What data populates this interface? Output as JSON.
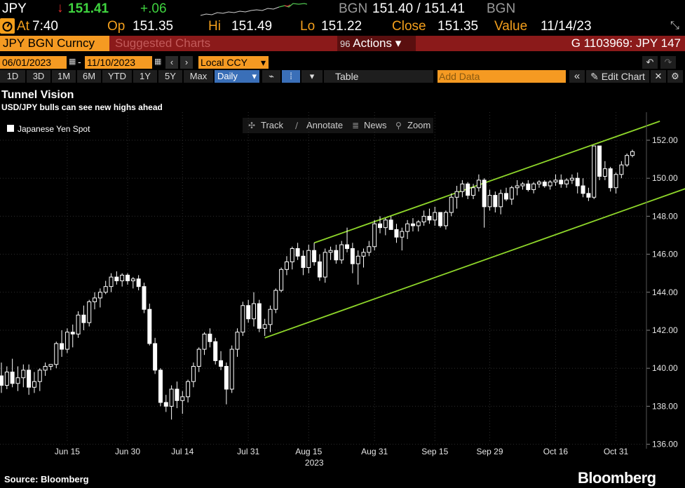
{
  "ticker": {
    "symbol": "JPY",
    "arrow": "↓",
    "last": "151.41",
    "change": "+.06",
    "bgn_label_left": "BGN",
    "bid_ask": "151.40 / 151.41",
    "bgn_label_right": "BGN",
    "colors": {
      "down_arrow": "#e8312f",
      "last": "#3fd33f",
      "change": "#3fd33f",
      "sparkline_up": "#4fc34f",
      "sparkline_down": "#e04040"
    }
  },
  "quote": {
    "at_label": "At",
    "time": "7:40",
    "op_label": "Op",
    "open": "151.35",
    "hi_label": "Hi",
    "high": "151.49",
    "lo_label": "Lo",
    "low": "151.22",
    "close_label": "Close",
    "close": "151.35",
    "value_label": "Value",
    "value_date": "11/14/23"
  },
  "command_bar": {
    "security": "JPY BGN Curncy",
    "suggested": "Suggested Charts",
    "actions_code": "96",
    "actions": "Actions",
    "chart_id": "G 1103969: JPY 147",
    "colors": {
      "bar": "#8b1a1a",
      "dark": "#5a0f0f"
    }
  },
  "date_bar": {
    "start": "06/01/2023",
    "end": "11/10/2023",
    "ccy": "Local CCY",
    "dash": "-"
  },
  "period_bar": {
    "periods": [
      "1D",
      "3D",
      "1M",
      "6M",
      "YTD",
      "1Y",
      "5Y",
      "Max"
    ],
    "interval": "Daily",
    "table": "Table",
    "add_data": "Add Data",
    "edit_chart": "Edit Chart",
    "accent": "#3a6fb8"
  },
  "tools": {
    "track": "Track",
    "annotate": "Annotate",
    "news": "News",
    "zoom": "Zoom"
  },
  "footer": {
    "source": "Source: Bloomberg",
    "brand": "Bloomberg"
  },
  "chart_data": {
    "type": "candlestick",
    "title": "Tunnel Vision",
    "subtitle": "USD/JPY bulls can see new highs ahead",
    "legend": "Japanese Yen Spot",
    "legend_position": "top-left",
    "ylim": [
      135.7,
      152.7
    ],
    "yticks": [
      "152.00",
      "150.00",
      "148.00",
      "146.00",
      "144.00",
      "142.00",
      "140.00",
      "138.00",
      "136.00"
    ],
    "yticks_values": [
      152,
      150,
      148,
      146,
      144,
      142,
      140,
      138,
      136
    ],
    "xticks": [
      "Jun 15",
      "Jun 30",
      "Jul 14",
      "Jul 31",
      "Aug 15",
      "Aug 31",
      "Sep 15",
      "Sep 29",
      "Oct 16",
      "Oct 31"
    ],
    "xticks_index": [
      12,
      23,
      33,
      45,
      56,
      68,
      79,
      89,
      101,
      112
    ],
    "year_label": "2023",
    "grid": true,
    "candle_color": "#ffffff",
    "channel_color": "#8ed62a",
    "channel": {
      "upper": {
        "start": [
          57,
          146.6
        ],
        "end": [
          120,
          153.0
        ]
      },
      "lower": {
        "start": [
          48,
          141.6
        ],
        "end": [
          130,
          150.0
        ]
      }
    },
    "ohlc": [
      [
        139.6,
        140.3,
        138.7,
        139.1
      ],
      [
        139.1,
        140.1,
        138.9,
        139.8
      ],
      [
        139.8,
        140.5,
        139.0,
        139.2
      ],
      [
        139.2,
        140.1,
        138.8,
        139.5
      ],
      [
        139.5,
        140.2,
        139.0,
        139.9
      ],
      [
        139.9,
        140.2,
        138.6,
        139.0
      ],
      [
        139.0,
        139.8,
        138.7,
        139.3
      ],
      [
        139.3,
        140.0,
        138.8,
        139.9
      ],
      [
        139.9,
        140.3,
        139.6,
        140.1
      ],
      [
        140.1,
        140.2,
        139.9,
        140.2
      ],
      [
        140.2,
        141.4,
        140.0,
        141.3
      ],
      [
        141.3,
        142.0,
        140.6,
        141.0
      ],
      [
        141.0,
        142.1,
        140.8,
        141.9
      ],
      [
        141.9,
        142.3,
        141.1,
        141.8
      ],
      [
        141.8,
        143.0,
        141.6,
        142.8
      ],
      [
        142.8,
        143.3,
        142.0,
        142.4
      ],
      [
        142.4,
        143.6,
        142.2,
        143.5
      ],
      [
        143.5,
        144.0,
        143.1,
        143.7
      ],
      [
        143.7,
        144.2,
        143.2,
        144.0
      ],
      [
        144.0,
        144.6,
        143.9,
        144.3
      ],
      [
        144.3,
        145.0,
        144.0,
        144.8
      ],
      [
        144.8,
        145.1,
        144.4,
        144.6
      ],
      [
        144.6,
        145.0,
        144.3,
        144.9
      ],
      [
        144.9,
        145.0,
        144.4,
        144.6
      ],
      [
        144.6,
        144.8,
        144.2,
        144.7
      ],
      [
        144.7,
        144.9,
        144.1,
        144.3
      ],
      [
        144.3,
        144.5,
        142.9,
        143.1
      ],
      [
        143.1,
        143.4,
        141.2,
        141.3
      ],
      [
        141.3,
        141.6,
        139.7,
        139.9
      ],
      [
        139.9,
        140.0,
        138.0,
        138.2
      ],
      [
        138.2,
        138.6,
        137.7,
        138.0
      ],
      [
        138.0,
        139.1,
        137.3,
        138.9
      ],
      [
        138.9,
        139.3,
        137.9,
        138.3
      ],
      [
        138.3,
        138.8,
        137.6,
        138.5
      ],
      [
        138.5,
        139.4,
        138.2,
        139.3
      ],
      [
        139.3,
        140.3,
        139.0,
        140.1
      ],
      [
        140.1,
        141.1,
        139.8,
        141.0
      ],
      [
        141.0,
        141.9,
        140.7,
        141.8
      ],
      [
        141.8,
        142.1,
        141.1,
        141.4
      ],
      [
        141.4,
        141.6,
        140.2,
        140.4
      ],
      [
        140.4,
        140.9,
        139.9,
        140.1
      ],
      [
        140.1,
        140.3,
        138.1,
        138.9
      ],
      [
        138.9,
        141.2,
        138.7,
        141.0
      ],
      [
        141.0,
        142.1,
        140.6,
        141.9
      ],
      [
        141.9,
        143.5,
        141.7,
        143.3
      ],
      [
        143.3,
        143.6,
        142.4,
        142.6
      ],
      [
        142.6,
        144.0,
        142.2,
        143.4
      ],
      [
        143.4,
        143.6,
        141.9,
        142.1
      ],
      [
        142.1,
        142.6,
        141.7,
        142.3
      ],
      [
        142.3,
        143.3,
        141.9,
        143.1
      ],
      [
        143.1,
        144.2,
        142.9,
        144.1
      ],
      [
        144.1,
        145.3,
        144.0,
        145.2
      ],
      [
        145.2,
        145.9,
        144.9,
        145.6
      ],
      [
        145.6,
        146.4,
        145.2,
        146.3
      ],
      [
        146.3,
        146.6,
        145.7,
        145.9
      ],
      [
        145.9,
        146.2,
        144.9,
        145.3
      ],
      [
        145.3,
        146.5,
        145.0,
        146.2
      ],
      [
        146.2,
        146.6,
        145.4,
        145.6
      ],
      [
        145.6,
        146.0,
        144.6,
        144.8
      ],
      [
        144.8,
        146.3,
        144.5,
        146.1
      ],
      [
        146.1,
        146.4,
        145.7,
        146.2
      ],
      [
        146.2,
        146.5,
        145.5,
        145.7
      ],
      [
        145.7,
        146.7,
        145.5,
        146.5
      ],
      [
        146.5,
        147.4,
        146.1,
        146.3
      ],
      [
        146.3,
        146.6,
        145.0,
        145.5
      ],
      [
        145.5,
        146.2,
        144.4,
        145.9
      ],
      [
        145.9,
        146.3,
        145.3,
        146.1
      ],
      [
        146.1,
        146.7,
        145.9,
        146.4
      ],
      [
        146.4,
        147.8,
        146.2,
        147.6
      ],
      [
        147.6,
        148.0,
        147.1,
        147.4
      ],
      [
        147.4,
        147.9,
        147.0,
        147.8
      ],
      [
        147.8,
        148.0,
        147.3,
        147.3
      ],
      [
        147.3,
        147.6,
        146.6,
        146.9
      ],
      [
        146.9,
        147.4,
        146.2,
        147.2
      ],
      [
        147.2,
        147.8,
        146.8,
        147.6
      ],
      [
        147.6,
        147.9,
        147.2,
        147.5
      ],
      [
        147.5,
        147.8,
        147.2,
        147.7
      ],
      [
        147.7,
        148.3,
        147.5,
        148.0
      ],
      [
        148.0,
        148.4,
        147.6,
        147.8
      ],
      [
        147.8,
        148.5,
        147.5,
        148.2
      ],
      [
        148.2,
        148.2,
        147.4,
        147.5
      ],
      [
        147.5,
        148.3,
        147.3,
        148.2
      ],
      [
        148.2,
        149.2,
        148.0,
        149.0
      ],
      [
        149.0,
        149.6,
        148.4,
        149.3
      ],
      [
        149.3,
        149.9,
        149.0,
        149.7
      ],
      [
        149.7,
        149.8,
        148.9,
        149.1
      ],
      [
        149.1,
        149.7,
        148.9,
        149.5
      ],
      [
        149.5,
        150.2,
        149.3,
        149.9
      ],
      [
        149.9,
        150.0,
        147.4,
        148.5
      ],
      [
        148.5,
        149.4,
        148.3,
        149.1
      ],
      [
        149.1,
        149.3,
        148.2,
        148.5
      ],
      [
        148.5,
        149.4,
        148.1,
        149.2
      ],
      [
        149.2,
        149.5,
        148.8,
        148.9
      ],
      [
        148.9,
        149.6,
        148.6,
        149.5
      ],
      [
        149.5,
        149.9,
        149.1,
        149.6
      ],
      [
        149.6,
        149.8,
        149.4,
        149.7
      ],
      [
        149.7,
        149.9,
        149.3,
        149.4
      ],
      [
        149.4,
        149.8,
        149.2,
        149.7
      ],
      [
        149.7,
        149.9,
        149.5,
        149.8
      ],
      [
        149.8,
        149.9,
        149.5,
        149.6
      ],
      [
        149.6,
        149.9,
        149.4,
        149.8
      ],
      [
        149.8,
        150.2,
        149.6,
        149.9
      ],
      [
        149.9,
        150.2,
        149.5,
        149.7
      ],
      [
        149.7,
        150.0,
        149.5,
        149.9
      ],
      [
        149.9,
        150.2,
        149.7,
        150.0
      ],
      [
        150.0,
        150.3,
        149.2,
        149.6
      ],
      [
        149.6,
        150.0,
        149.0,
        149.2
      ],
      [
        149.2,
        149.5,
        148.8,
        149.0
      ],
      [
        149.0,
        151.7,
        148.9,
        151.7
      ],
      [
        151.7,
        151.7,
        149.9,
        150.1
      ],
      [
        150.1,
        150.9,
        149.9,
        150.5
      ],
      [
        150.5,
        150.6,
        149.3,
        149.5
      ],
      [
        149.5,
        150.3,
        149.2,
        150.2
      ],
      [
        150.2,
        150.9,
        150.0,
        150.7
      ],
      [
        150.7,
        151.3,
        150.6,
        151.2
      ],
      [
        151.2,
        151.5,
        151.1,
        151.4
      ]
    ]
  }
}
